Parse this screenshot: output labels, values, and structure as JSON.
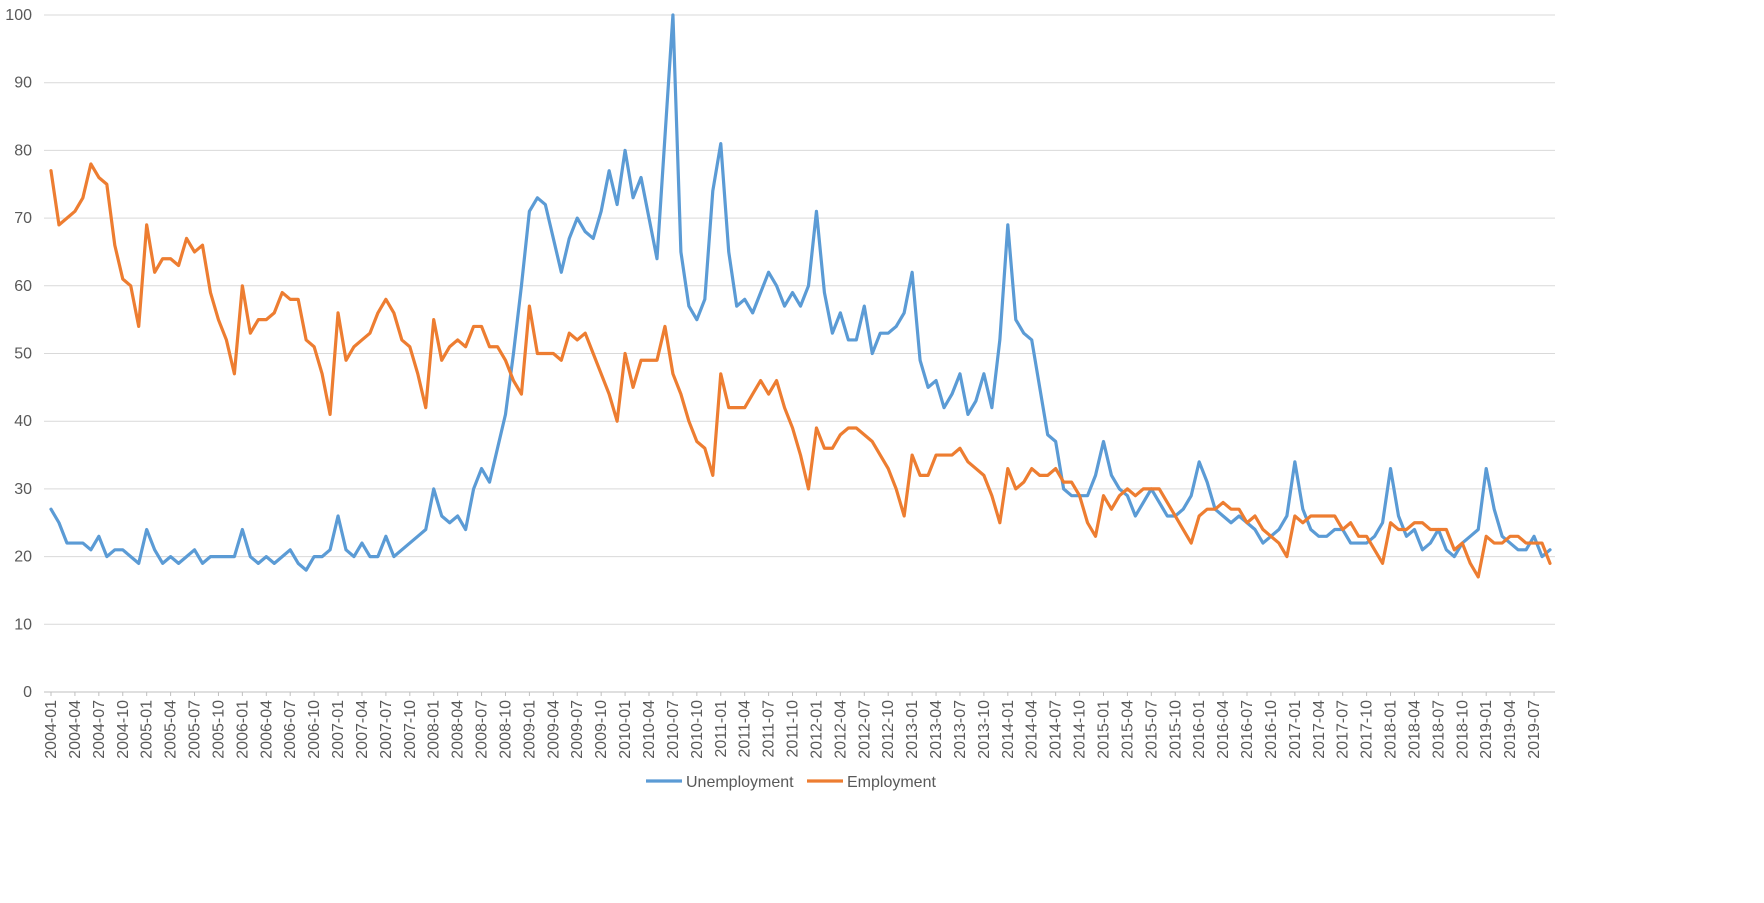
{
  "chart_data": {
    "type": "line",
    "title": "",
    "xlabel": "",
    "ylabel": "",
    "ylim": [
      0,
      100
    ],
    "yticks": [
      0,
      10,
      20,
      30,
      40,
      50,
      60,
      70,
      80,
      90,
      100
    ],
    "grid": true,
    "legend": "bottom",
    "x_start": "2004-01",
    "x_tick_labels": [
      "2004-01",
      "2004-04",
      "2004-07",
      "2004-10",
      "2005-01",
      "2005-04",
      "2005-07",
      "2005-10",
      "2006-01",
      "2006-04",
      "2006-07",
      "2006-10",
      "2007-01",
      "2007-04",
      "2007-07",
      "2007-10",
      "2008-01",
      "2008-04",
      "2008-07",
      "2008-10",
      "2009-01",
      "2009-04",
      "2009-07",
      "2009-10",
      "2010-01",
      "2010-04",
      "2010-07",
      "2010-10",
      "2011-01",
      "2011-04",
      "2011-07",
      "2011-10",
      "2012-01",
      "2012-04",
      "2012-07",
      "2012-10",
      "2013-01",
      "2013-04",
      "2013-07",
      "2013-10",
      "2014-01",
      "2014-04",
      "2014-07",
      "2014-10",
      "2015-01",
      "2015-04",
      "2015-07",
      "2015-10",
      "2016-01",
      "2016-04",
      "2016-07",
      "2016-10",
      "2017-01",
      "2017-04",
      "2017-07",
      "2017-10",
      "2018-01",
      "2018-04",
      "2018-07",
      "2018-10",
      "2019-01",
      "2019-04",
      "2019-07"
    ],
    "series": [
      {
        "name": "Unemployment",
        "color": "#5B9BD5",
        "values": [
          27,
          25,
          22,
          22,
          22,
          21,
          23,
          20,
          21,
          21,
          20,
          19,
          24,
          21,
          19,
          20,
          19,
          20,
          21,
          19,
          20,
          20,
          20,
          20,
          24,
          20,
          19,
          20,
          19,
          20,
          21,
          19,
          18,
          20,
          20,
          21,
          26,
          21,
          20,
          22,
          20,
          20,
          23,
          20,
          21,
          22,
          23,
          24,
          30,
          26,
          25,
          26,
          24,
          30,
          33,
          31,
          36,
          41,
          50,
          60,
          71,
          73,
          72,
          67,
          62,
          67,
          70,
          68,
          67,
          71,
          77,
          72,
          80,
          73,
          76,
          70,
          64,
          82,
          100,
          65,
          57,
          55,
          58,
          74,
          81,
          65,
          57,
          58,
          56,
          59,
          62,
          60,
          57,
          59,
          57,
          60,
          71,
          59,
          53,
          56,
          52,
          52,
          57,
          50,
          53,
          53,
          54,
          56,
          62,
          49,
          45,
          46,
          42,
          44,
          47,
          41,
          43,
          47,
          42,
          52,
          69,
          55,
          53,
          52,
          45,
          38,
          37,
          30,
          29,
          29,
          29,
          32,
          37,
          32,
          30,
          29,
          26,
          28,
          30,
          28,
          26,
          26,
          27,
          29,
          34,
          31,
          27,
          26,
          25,
          26,
          25,
          24,
          22,
          23,
          24,
          26,
          34,
          27,
          24,
          23,
          23,
          24,
          24,
          22,
          22,
          22,
          23,
          25,
          33,
          26,
          23,
          24,
          21,
          22,
          24,
          21,
          20,
          22,
          23,
          24,
          33,
          27,
          23,
          22,
          21,
          21,
          23,
          20,
          21
        ]
      },
      {
        "name": "Employment",
        "color": "#ED7D31",
        "values": [
          77,
          69,
          70,
          71,
          73,
          78,
          76,
          75,
          66,
          61,
          60,
          54,
          69,
          62,
          64,
          64,
          63,
          67,
          65,
          66,
          59,
          55,
          52,
          47,
          60,
          53,
          55,
          55,
          56,
          59,
          58,
          58,
          52,
          51,
          47,
          41,
          56,
          49,
          51,
          52,
          53,
          56,
          58,
          56,
          52,
          51,
          47,
          42,
          55,
          49,
          51,
          52,
          51,
          54,
          54,
          51,
          51,
          49,
          46,
          44,
          57,
          50,
          50,
          50,
          49,
          53,
          52,
          53,
          50,
          47,
          44,
          40,
          50,
          45,
          49,
          49,
          49,
          54,
          47,
          44,
          40,
          37,
          36,
          32,
          47,
          42,
          42,
          42,
          44,
          46,
          44,
          46,
          42,
          39,
          35,
          30,
          39,
          36,
          36,
          38,
          39,
          39,
          38,
          37,
          35,
          33,
          30,
          26,
          35,
          32,
          32,
          35,
          35,
          35,
          36,
          34,
          33,
          32,
          29,
          25,
          33,
          30,
          31,
          33,
          32,
          32,
          33,
          31,
          31,
          29,
          25,
          23,
          29,
          27,
          29,
          30,
          29,
          30,
          30,
          30,
          28,
          26,
          24,
          22,
          26,
          27,
          27,
          28,
          27,
          27,
          25,
          26,
          24,
          23,
          22,
          20,
          26,
          25,
          26,
          26,
          26,
          26,
          24,
          25,
          23,
          23,
          21,
          19,
          25,
          24,
          24,
          25,
          25,
          24,
          24,
          24,
          21,
          22,
          19,
          17,
          23,
          22,
          22,
          23,
          23,
          22,
          22,
          22,
          19
        ]
      }
    ]
  }
}
